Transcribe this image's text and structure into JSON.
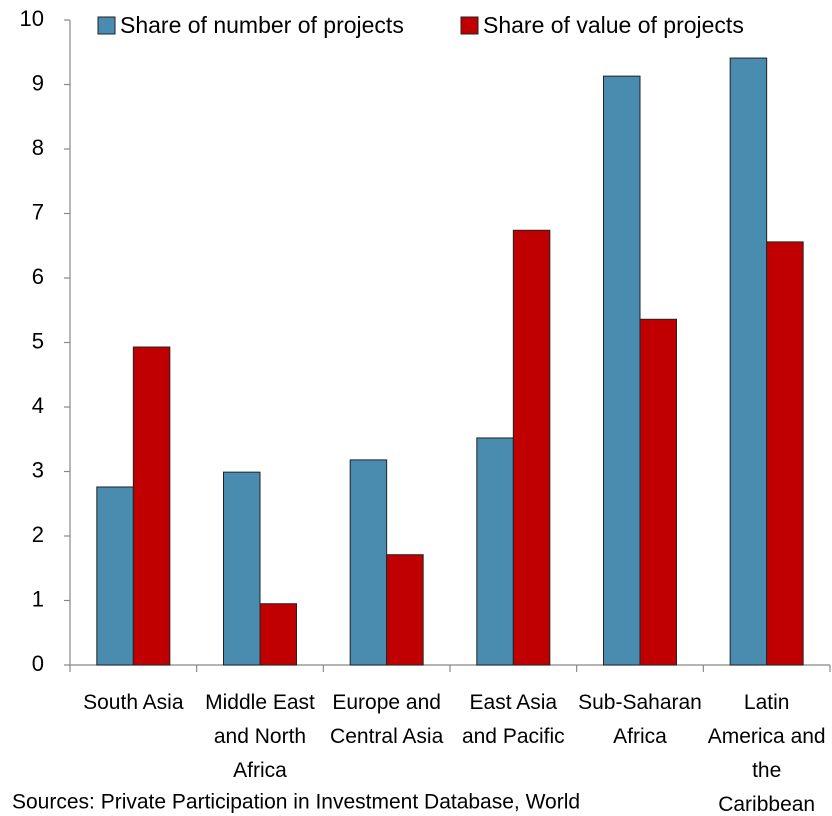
{
  "chart_data": {
    "type": "bar",
    "categories": [
      "South Asia",
      "Middle East\nand North\nAfrica",
      "Europe and\nCentral Asia",
      "East Asia\nand Pacific",
      "Sub-Saharan\nAfrica",
      "Latin\nAmerica and\nthe\nCaribbean"
    ],
    "series": [
      {
        "name": "Share of number of projects",
        "color": "#4a8bb0",
        "values": [
          2.76,
          2.99,
          3.18,
          3.52,
          9.13,
          9.41
        ]
      },
      {
        "name": "Share of value of projects",
        "color": "#c00000",
        "values": [
          4.93,
          0.95,
          1.71,
          6.74,
          5.36,
          6.56
        ]
      }
    ],
    "ylim": [
      0,
      10
    ],
    "yticks": [
      0,
      1,
      2,
      3,
      4,
      5,
      6,
      7,
      8,
      9,
      10
    ],
    "note": "Sources: Private Participation in Investment Database, World"
  }
}
